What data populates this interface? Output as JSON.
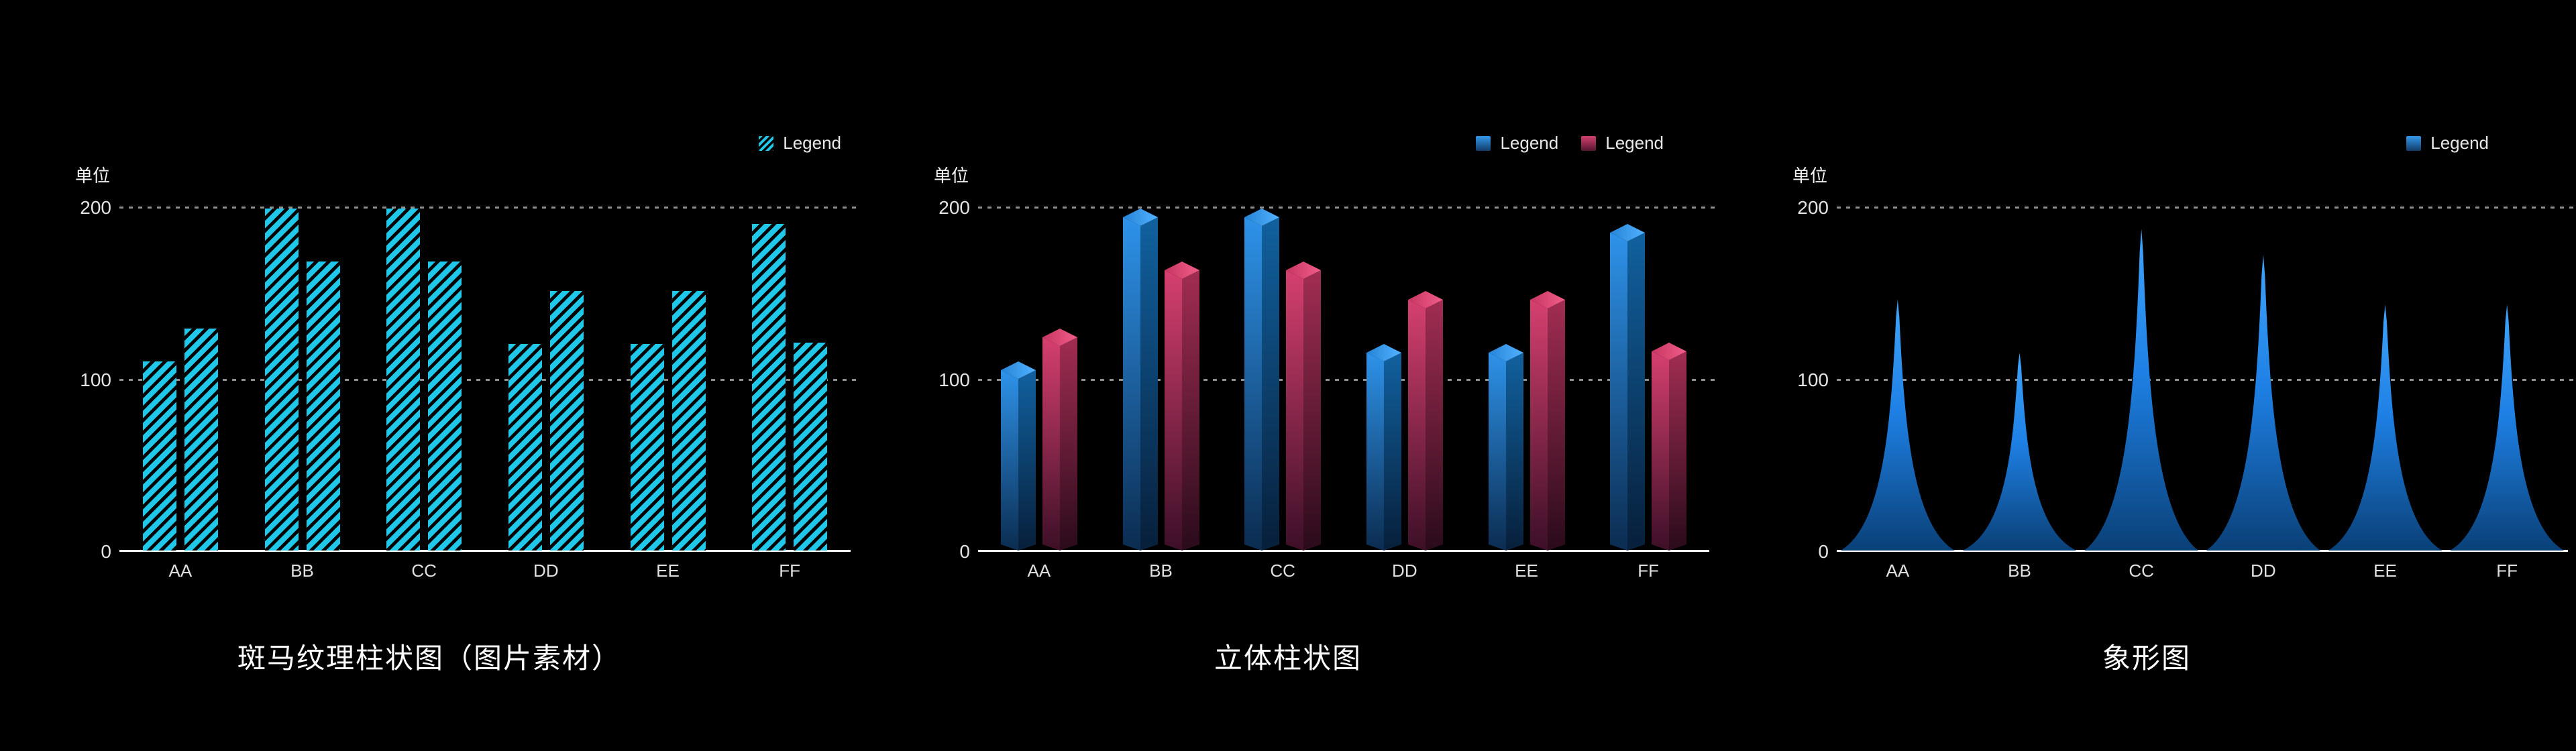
{
  "page": {
    "background": "#000000",
    "unit_label": "单位"
  },
  "chart_data": [
    {
      "type": "bar",
      "style": "zebra-texture",
      "title": "斑马纹理柱状图（图片素材）",
      "unit_label": "单位",
      "categories": [
        "AA",
        "BB",
        "CC",
        "DD",
        "EE",
        "FF"
      ],
      "series": [
        {
          "name": "Legend",
          "values": [
            110,
            199,
            199,
            120,
            120,
            190
          ]
        },
        {
          "name": "Legend",
          "values": [
            129,
            168,
            168,
            151,
            151,
            121
          ]
        }
      ],
      "ylim": [
        0,
        200
      ],
      "y_ticks": [
        0,
        100,
        200
      ],
      "grid": "dotted horizontal gridlines at 100 and 200",
      "legend_position": "top-right",
      "legend": [
        {
          "label": "Legend",
          "swatch": "zebra"
        }
      ],
      "colors": {
        "stripe": "#1fc8e9",
        "stripe_gap": "#000000",
        "axis": "#ffffff",
        "grid": "#8f8f8f"
      }
    },
    {
      "type": "bar",
      "style": "3d-prism",
      "title": "立体柱状图",
      "unit_label": "单位",
      "categories": [
        "AA",
        "BB",
        "CC",
        "DD",
        "EE",
        "FF"
      ],
      "series": [
        {
          "name": "Legend",
          "values": [
            110,
            199,
            199,
            120,
            120,
            190
          ]
        },
        {
          "name": "Legend",
          "values": [
            129,
            168,
            168,
            151,
            151,
            121
          ]
        }
      ],
      "ylim": [
        0,
        200
      ],
      "y_ticks": [
        0,
        100,
        200
      ],
      "grid": "dotted horizontal gridlines at 100 and 200",
      "legend_position": "top-right",
      "legend": [
        {
          "label": "Legend",
          "swatch": "blue"
        },
        {
          "label": "Legend",
          "swatch": "pink"
        }
      ],
      "colors": {
        "blue_top": "#52b1ff",
        "blue_face": "#2e93ea",
        "blue_dark": "#071f3a",
        "pink_top": "#f05e88",
        "pink_face": "#d6406f",
        "pink_dark": "#2a0b1b",
        "axis": "#ffffff",
        "grid": "#8f8f8f"
      }
    },
    {
      "type": "pictorial-bar",
      "style": "spike",
      "title": "象形图",
      "unit_label": "单位",
      "categories": [
        "AA",
        "BB",
        "CC",
        "DD",
        "EE",
        "FF"
      ],
      "series": [
        {
          "name": "Legend",
          "values": [
            146,
            115,
            187,
            172,
            143,
            143
          ]
        }
      ],
      "ylim": [
        0,
        200
      ],
      "y_ticks": [
        0,
        100,
        200
      ],
      "grid": "dotted horizontal gridlines at 100 and 200",
      "legend_position": "top-right",
      "legend": [
        {
          "label": "Legend",
          "swatch": "blue"
        }
      ],
      "colors": {
        "spike_top": "#3fa4fb",
        "spike_mid": "#1e80e4",
        "spike_base": "#0a4077",
        "axis": "#ffffff",
        "grid": "#8f8f8f"
      }
    }
  ]
}
